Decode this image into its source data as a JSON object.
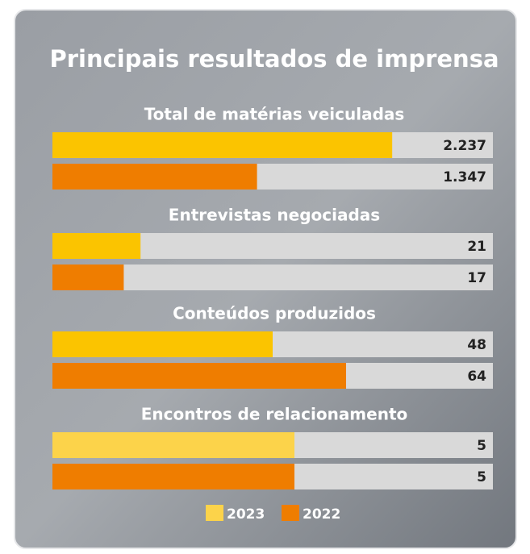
{
  "title": "Principais resultados de imprensa",
  "chart_data": [
    {
      "type": "bar",
      "title": "Total de matérias veiculadas",
      "xlim": [
        0,
        2900
      ],
      "series": [
        {
          "name": "2023",
          "color": "#fbc400",
          "values": [
            2237
          ],
          "value_labels": [
            "2.237"
          ]
        },
        {
          "name": "2022",
          "color": "#ef7d00",
          "values": [
            1347
          ],
          "value_labels": [
            "1.347"
          ]
        }
      ]
    },
    {
      "type": "bar",
      "title": "Entrevistas negociadas",
      "xlim": [
        0,
        105
      ],
      "series": [
        {
          "name": "2023",
          "color": "#fbc400",
          "values": [
            21
          ]
        },
        {
          "name": "2022",
          "color": "#ef7d00",
          "values": [
            17
          ]
        }
      ]
    },
    {
      "type": "bar",
      "title": "Conteúdos produzidos",
      "xlim": [
        0,
        96
      ],
      "series": [
        {
          "name": "2023",
          "color": "#fbc400",
          "values": [
            48
          ]
        },
        {
          "name": "2022",
          "color": "#ef7d00",
          "values": [
            64
          ]
        }
      ]
    },
    {
      "type": "bar",
      "title": "Encontros de relacionamento",
      "xlim": [
        0,
        9.1
      ],
      "series": [
        {
          "name": "2023",
          "color": "#fcd34a",
          "values": [
            5
          ]
        },
        {
          "name": "2022",
          "color": "#ef7d00",
          "values": [
            5
          ]
        }
      ]
    }
  ]
}
